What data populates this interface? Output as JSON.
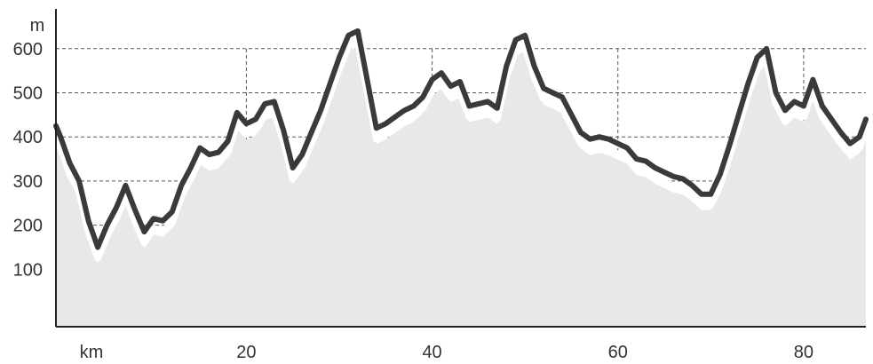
{
  "chart_data": {
    "type": "area",
    "title": "",
    "xlabel": "km",
    "ylabel": "m",
    "xlim": [
      -0.5,
      86.7
    ],
    "ylim": [
      -30,
      690
    ],
    "x_ticks": [
      20,
      40,
      60,
      80
    ],
    "y_ticks": [
      100,
      200,
      300,
      400,
      500,
      600
    ],
    "grid": true,
    "colors": {
      "line": "#3a3a3a",
      "line_alt": "#7a7a7a",
      "area": "#e8e8e8",
      "area_light": "#f2f2f2",
      "grid": "#555555",
      "axis": "#222222"
    },
    "series": [
      {
        "values_kind": "elevation",
        "x": [
          -0.5,
          0,
          1,
          2,
          3,
          4,
          5,
          6,
          7,
          8,
          9,
          10,
          11,
          12,
          13,
          14,
          15,
          16,
          17,
          18,
          19,
          20,
          21,
          22,
          23,
          24,
          25,
          26,
          27,
          28,
          29,
          30,
          31,
          32,
          33,
          34,
          35,
          36,
          37,
          38,
          39,
          40,
          41,
          42,
          43,
          44,
          45,
          46,
          47,
          48,
          49,
          50,
          51,
          52,
          53,
          54,
          55,
          56,
          57,
          58,
          59,
          60,
          61,
          62,
          63,
          64,
          65,
          66,
          67,
          68,
          69,
          70,
          71,
          72,
          73,
          74,
          75,
          76,
          77,
          78,
          79,
          80,
          81,
          82,
          83,
          84,
          85,
          86,
          86.7
        ],
        "y": [
          425,
          400,
          340,
          300,
          210,
          150,
          200,
          240,
          290,
          235,
          185,
          215,
          210,
          230,
          290,
          330,
          375,
          360,
          365,
          390,
          455,
          430,
          440,
          475,
          480,
          415,
          330,
          360,
          410,
          460,
          520,
          580,
          630,
          640,
          530,
          420,
          430,
          445,
          460,
          470,
          490,
          530,
          545,
          515,
          525,
          470,
          475,
          480,
          465,
          560,
          620,
          630,
          560,
          510,
          500,
          490,
          450,
          410,
          395,
          400,
          395,
          385,
          375,
          350,
          345,
          330,
          320,
          310,
          305,
          290,
          270,
          270,
          315,
          380,
          450,
          520,
          580,
          600,
          500,
          460,
          480,
          470,
          530,
          470,
          440,
          410,
          385,
          400,
          440
        ]
      }
    ]
  }
}
